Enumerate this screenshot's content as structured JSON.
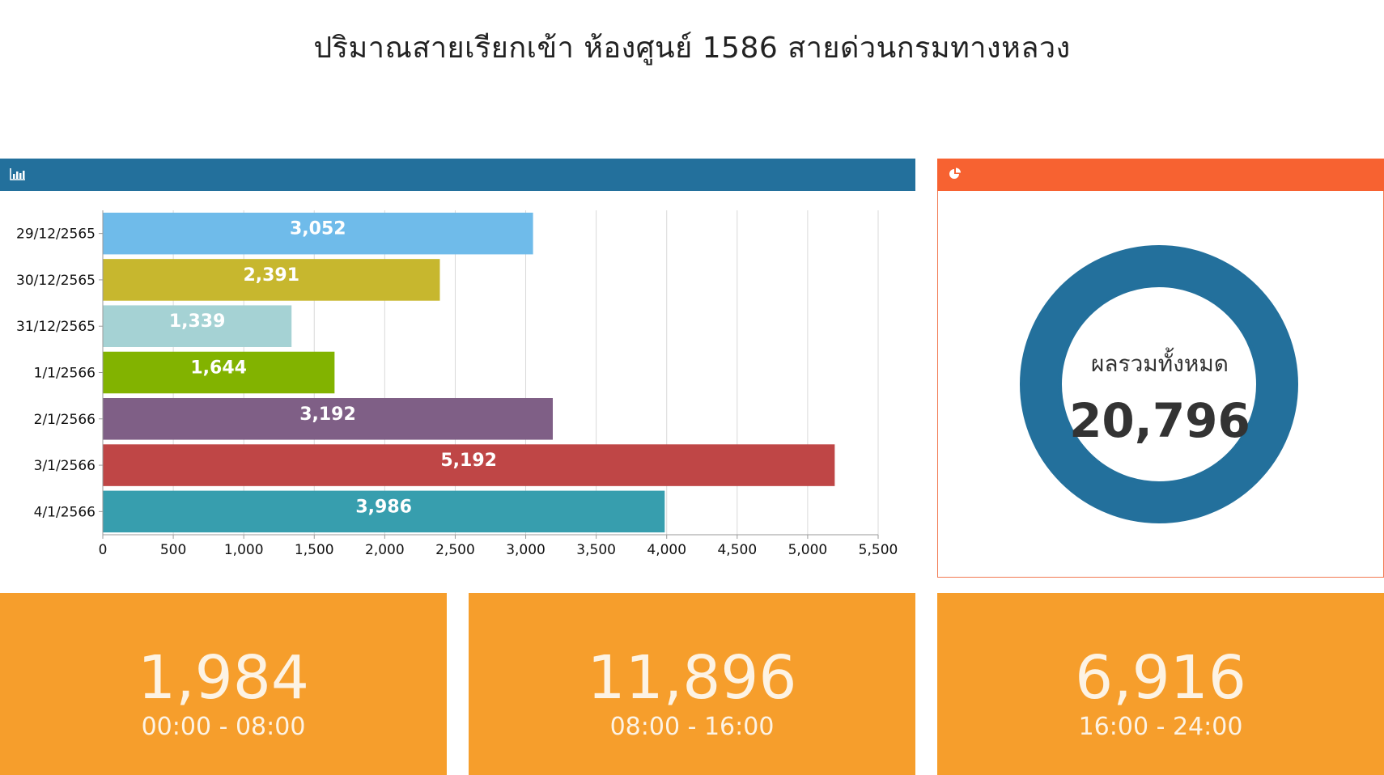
{
  "title": "ปริมาณสายเรียกเข้า ห้องศูนย์ 1586 สายด่วนกรมทางหลวง",
  "bar_panel": {
    "icon": "bar-chart-icon",
    "header_color": "#23709c"
  },
  "donut_panel": {
    "icon": "pie-chart-icon",
    "header_color": "#f76231",
    "ring_color": "#23709c",
    "caption": "ผลรวมทั้งหมด",
    "total": "20,796"
  },
  "shift_cards": [
    {
      "value": "1,984",
      "range": "00:00 - 08:00"
    },
    {
      "value": "11,896",
      "range": "08:00 - 16:00"
    },
    {
      "value": "6,916",
      "range": "16:00 - 24:00"
    }
  ],
  "card_color": "#f69e2c",
  "chart_data": {
    "type": "bar",
    "orientation": "horizontal",
    "categories": [
      "29/12/2565",
      "30/12/2565",
      "31/12/2565",
      "1/1/2566",
      "2/1/2566",
      "3/1/2566",
      "4/1/2566"
    ],
    "values": [
      3052,
      2391,
      1339,
      1644,
      3192,
      5192,
      3986
    ],
    "value_labels": [
      "3,052",
      "2,391",
      "1,339",
      "1,644",
      "3,192",
      "5,192",
      "3,986"
    ],
    "colors": [
      "#6fbbea",
      "#c7b72e",
      "#a5d2d4",
      "#82b300",
      "#7f5f86",
      "#bf4646",
      "#379eae"
    ],
    "xlim": [
      0,
      5500
    ],
    "xticks": [
      0,
      500,
      1000,
      1500,
      2000,
      2500,
      3000,
      3500,
      4000,
      4500,
      5000,
      5500
    ],
    "xtick_labels": [
      "0",
      "500",
      "1,000",
      "1,500",
      "2,000",
      "2,500",
      "3,000",
      "3,500",
      "4,000",
      "4,500",
      "5,000",
      "5,500"
    ],
    "grid": true,
    "xlabel": "",
    "ylabel": ""
  }
}
